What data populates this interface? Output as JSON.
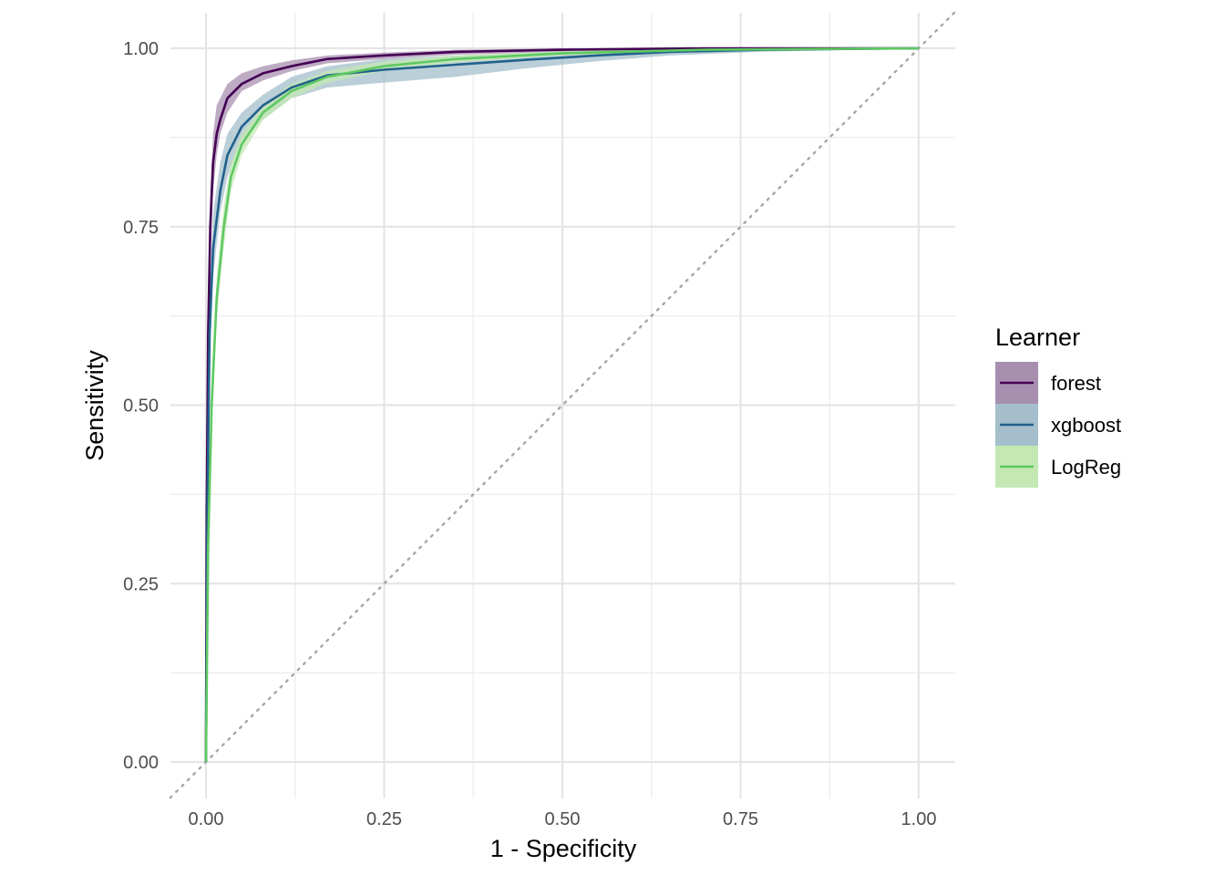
{
  "chart_data": {
    "type": "line",
    "xlabel": "1 - Specificity",
    "ylabel": "Sensitivity",
    "xlim": [
      -0.05,
      1.05
    ],
    "ylim": [
      -0.05,
      1.05
    ],
    "x_ticks": [
      0,
      0.25,
      0.5,
      0.75,
      1
    ],
    "y_ticks": [
      0,
      0.25,
      0.5,
      0.75,
      1
    ],
    "x_tick_labels": [
      "0.00",
      "0.25",
      "0.50",
      "0.75",
      "1.00"
    ],
    "y_tick_labels": [
      "0.00",
      "0.25",
      "0.50",
      "0.75",
      "1.00"
    ],
    "grid": true,
    "reference_line": {
      "from": [
        0,
        0
      ],
      "to": [
        1,
        1
      ],
      "style": "dotted",
      "color": "#a6a6a6"
    },
    "legend": {
      "title": "Learner",
      "position": "right",
      "entries": [
        "forest",
        "xgboost",
        "LogReg"
      ]
    },
    "series": [
      {
        "name": "forest",
        "color": "#440154",
        "band_color": "#a88fb0",
        "points": [
          {
            "x": 0,
            "y": 0,
            "lo": 0,
            "hi": 0
          },
          {
            "x": 0.001,
            "y": 0.35,
            "lo": 0.3,
            "hi": 0.4
          },
          {
            "x": 0.003,
            "y": 0.6,
            "lo": 0.55,
            "hi": 0.67
          },
          {
            "x": 0.006,
            "y": 0.75,
            "lo": 0.7,
            "hi": 0.8
          },
          {
            "x": 0.01,
            "y": 0.84,
            "lo": 0.8,
            "hi": 0.88
          },
          {
            "x": 0.015,
            "y": 0.88,
            "lo": 0.85,
            "hi": 0.92
          },
          {
            "x": 0.02,
            "y": 0.9,
            "lo": 0.88,
            "hi": 0.93
          },
          {
            "x": 0.03,
            "y": 0.93,
            "lo": 0.91,
            "hi": 0.95
          },
          {
            "x": 0.05,
            "y": 0.95,
            "lo": 0.94,
            "hi": 0.965
          },
          {
            "x": 0.08,
            "y": 0.965,
            "lo": 0.955,
            "hi": 0.975
          },
          {
            "x": 0.12,
            "y": 0.975,
            "lo": 0.968,
            "hi": 0.983
          },
          {
            "x": 0.17,
            "y": 0.985,
            "lo": 0.979,
            "hi": 0.99
          },
          {
            "x": 0.25,
            "y": 0.99,
            "lo": 0.985,
            "hi": 0.994
          },
          {
            "x": 0.35,
            "y": 0.995,
            "lo": 0.991,
            "hi": 0.998
          },
          {
            "x": 0.5,
            "y": 0.998,
            "lo": 0.995,
            "hi": 1
          },
          {
            "x": 0.7,
            "y": 1,
            "lo": 0.998,
            "hi": 1
          },
          {
            "x": 1,
            "y": 1,
            "lo": 1,
            "hi": 1
          }
        ]
      },
      {
        "name": "xgboost",
        "color": "#21618c",
        "band_color": "#a4bfcb",
        "points": [
          {
            "x": 0,
            "y": 0,
            "lo": 0,
            "hi": 0
          },
          {
            "x": 0.002,
            "y": 0.35,
            "lo": 0.3,
            "hi": 0.4
          },
          {
            "x": 0.005,
            "y": 0.6,
            "lo": 0.55,
            "hi": 0.65
          },
          {
            "x": 0.01,
            "y": 0.72,
            "lo": 0.68,
            "hi": 0.77
          },
          {
            "x": 0.02,
            "y": 0.8,
            "lo": 0.77,
            "hi": 0.84
          },
          {
            "x": 0.03,
            "y": 0.85,
            "lo": 0.82,
            "hi": 0.88
          },
          {
            "x": 0.05,
            "y": 0.89,
            "lo": 0.87,
            "hi": 0.91
          },
          {
            "x": 0.08,
            "y": 0.92,
            "lo": 0.9,
            "hi": 0.935
          },
          {
            "x": 0.12,
            "y": 0.945,
            "lo": 0.93,
            "hi": 0.96
          },
          {
            "x": 0.17,
            "y": 0.962,
            "lo": 0.945,
            "hi": 0.975
          },
          {
            "x": 0.25,
            "y": 0.97,
            "lo": 0.952,
            "hi": 0.985
          },
          {
            "x": 0.35,
            "y": 0.977,
            "lo": 0.96,
            "hi": 0.99
          },
          {
            "x": 0.45,
            "y": 0.984,
            "lo": 0.972,
            "hi": 0.993
          },
          {
            "x": 0.55,
            "y": 0.99,
            "lo": 0.982,
            "hi": 0.996
          },
          {
            "x": 0.65,
            "y": 0.995,
            "lo": 0.99,
            "hi": 0.998
          },
          {
            "x": 0.78,
            "y": 0.998,
            "lo": 0.995,
            "hi": 1
          },
          {
            "x": 1,
            "y": 1,
            "lo": 1,
            "hi": 1
          }
        ]
      },
      {
        "name": "LogReg",
        "color": "#5ec962",
        "band_color": "#c4e8b3",
        "points": [
          {
            "x": 0,
            "y": 0,
            "lo": 0,
            "hi": 0
          },
          {
            "x": 0.003,
            "y": 0.3,
            "lo": 0.26,
            "hi": 0.34
          },
          {
            "x": 0.008,
            "y": 0.5,
            "lo": 0.46,
            "hi": 0.54
          },
          {
            "x": 0.015,
            "y": 0.65,
            "lo": 0.62,
            "hi": 0.68
          },
          {
            "x": 0.025,
            "y": 0.75,
            "lo": 0.72,
            "hi": 0.78
          },
          {
            "x": 0.035,
            "y": 0.82,
            "lo": 0.8,
            "hi": 0.84
          },
          {
            "x": 0.05,
            "y": 0.865,
            "lo": 0.85,
            "hi": 0.88
          },
          {
            "x": 0.08,
            "y": 0.91,
            "lo": 0.9,
            "hi": 0.92
          },
          {
            "x": 0.12,
            "y": 0.94,
            "lo": 0.93,
            "hi": 0.95
          },
          {
            "x": 0.17,
            "y": 0.96,
            "lo": 0.952,
            "hi": 0.968
          },
          {
            "x": 0.25,
            "y": 0.975,
            "lo": 0.968,
            "hi": 0.982
          },
          {
            "x": 0.35,
            "y": 0.985,
            "lo": 0.98,
            "hi": 0.99
          },
          {
            "x": 0.5,
            "y": 0.993,
            "lo": 0.99,
            "hi": 0.996
          },
          {
            "x": 0.7,
            "y": 0.998,
            "lo": 0.996,
            "hi": 1
          },
          {
            "x": 1,
            "y": 1,
            "lo": 1,
            "hi": 1
          }
        ]
      }
    ]
  }
}
